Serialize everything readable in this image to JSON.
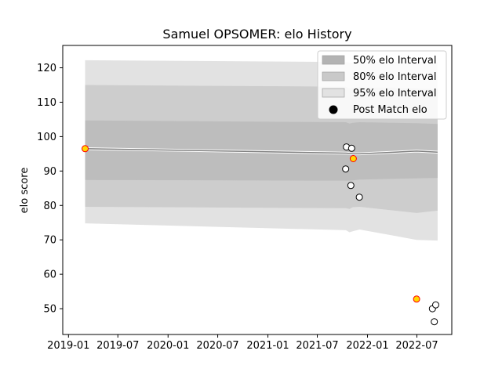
{
  "chart_data": {
    "type": "line",
    "title": "Samuel OPSOMER: elo History",
    "xlabel": "",
    "ylabel": "elo score",
    "xlim": [
      "2018-12-11",
      "2022-11-06"
    ],
    "ylim": [
      42.5,
      126.5
    ],
    "xticks": [
      "2019-01",
      "2019-07",
      "2020-01",
      "2020-07",
      "2021-01",
      "2021-07",
      "2022-01",
      "2022-07"
    ],
    "yticks": [
      50,
      60,
      70,
      80,
      90,
      100,
      110,
      120
    ],
    "grid": false,
    "legend_position": "upper right",
    "legend": [
      {
        "label": "50% elo Interval",
        "color": "#b3b3b3"
      },
      {
        "label": "80% elo Interval",
        "color": "#c9c9c9"
      },
      {
        "label": "95% elo Interval",
        "color": "#e2e2e2"
      },
      {
        "label": "Post Match elo",
        "color": "#000000"
      }
    ],
    "mean_line": {
      "x": [
        "2019-03-03",
        "2021-10-14",
        "2021-10-27",
        "2021-11-08",
        "2021-12-03",
        "2022-06-30",
        "2022-09-15"
      ],
      "y": [
        96.5,
        95.2,
        95.1,
        95.0,
        95.0,
        95.8,
        95.5
      ]
    },
    "bands": [
      {
        "name": "95% elo Interval",
        "color": "#e2e2e2",
        "x": [
          "2019-03-03",
          "2021-10-14",
          "2021-10-27",
          "2021-11-08",
          "2021-12-03",
          "2022-06-30",
          "2022-09-15"
        ],
        "lower": [
          74.8,
          72.8,
          72.2,
          72.5,
          73.0,
          70.0,
          69.8
        ],
        "upper": [
          122.2,
          121.7,
          121.5,
          121.5,
          121.6,
          121.8,
          121.5
        ]
      },
      {
        "name": "80% elo Interval",
        "color": "#cdcdcd",
        "x": [
          "2019-03-03",
          "2021-10-14",
          "2021-10-27",
          "2021-11-08",
          "2021-12-03",
          "2022-06-30",
          "2022-09-15"
        ],
        "lower": [
          79.6,
          79.2,
          79.0,
          79.5,
          79.6,
          77.8,
          78.5
        ],
        "upper": [
          115.0,
          114.5,
          114.0,
          114.3,
          114.4,
          114.0,
          113.8
        ]
      },
      {
        "name": "50% elo Interval",
        "color": "#bdbdbd",
        "x": [
          "2019-03-03",
          "2021-10-14",
          "2021-10-27",
          "2021-11-08",
          "2021-12-03",
          "2022-06-30",
          "2022-09-15"
        ],
        "lower": [
          87.4,
          87.2,
          87.2,
          87.3,
          87.5,
          87.9,
          88.0
        ],
        "upper": [
          104.7,
          104.2,
          103.8,
          104.0,
          104.2,
          103.9,
          103.7
        ]
      }
    ],
    "points": [
      {
        "x": "2019-03-03",
        "y": 96.5,
        "highlight": true
      },
      {
        "x": "2021-10-13",
        "y": 90.6,
        "highlight": false
      },
      {
        "x": "2021-10-16",
        "y": 97.0,
        "highlight": false
      },
      {
        "x": "2021-11-01",
        "y": 85.8,
        "highlight": false
      },
      {
        "x": "2021-11-04",
        "y": 96.6,
        "highlight": false
      },
      {
        "x": "2021-11-10",
        "y": 93.6,
        "highlight": true
      },
      {
        "x": "2021-12-02",
        "y": 82.4,
        "highlight": false
      },
      {
        "x": "2022-06-30",
        "y": 52.8,
        "highlight": true
      },
      {
        "x": "2022-08-27",
        "y": 50.0,
        "highlight": false
      },
      {
        "x": "2022-09-03",
        "y": 46.2,
        "highlight": false
      },
      {
        "x": "2022-09-08",
        "y": 51.1,
        "highlight": false
      }
    ],
    "colors": {
      "point_face": "#ffffff",
      "point_edge": "#000000",
      "highlight_face": "#ffd700",
      "highlight_edge": "#ff0000",
      "mean_line": "#808080"
    }
  }
}
